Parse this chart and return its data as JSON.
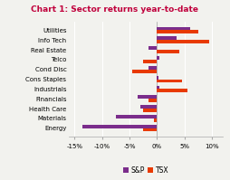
{
  "title": "Chart 1: Sector returns year-to-date",
  "categories": [
    "Utilities",
    "Info Tech",
    "Real Estate",
    "Telco",
    "Cond Disc",
    "Cons Staples",
    "Industrials",
    "Financials",
    "Health Care",
    "Materials",
    "Energy"
  ],
  "sp500": [
    6.0,
    3.5,
    -1.5,
    0.5,
    -1.5,
    0.2,
    0.5,
    -3.5,
    -3.0,
    -7.5,
    -13.5
  ],
  "tsx": [
    7.5,
    9.5,
    4.0,
    -2.5,
    -4.5,
    4.5,
    5.5,
    -1.5,
    -2.5,
    -0.5,
    -2.5
  ],
  "sp500_color": "#7B2D8B",
  "tsx_color": "#E83A00",
  "title_color": "#C0003C",
  "background_color": "#F2F2EE",
  "grid_color": "#FFFFFF",
  "xlim": [
    -16,
    12
  ],
  "xticks": [
    -15,
    -10,
    -5,
    0,
    5,
    10
  ],
  "xtick_labels": [
    "-15%",
    "-10%",
    "-5%",
    "0%",
    "5%",
    "10%"
  ],
  "bar_height": 0.35,
  "legend_labels": [
    "S&P",
    "TSX"
  ]
}
